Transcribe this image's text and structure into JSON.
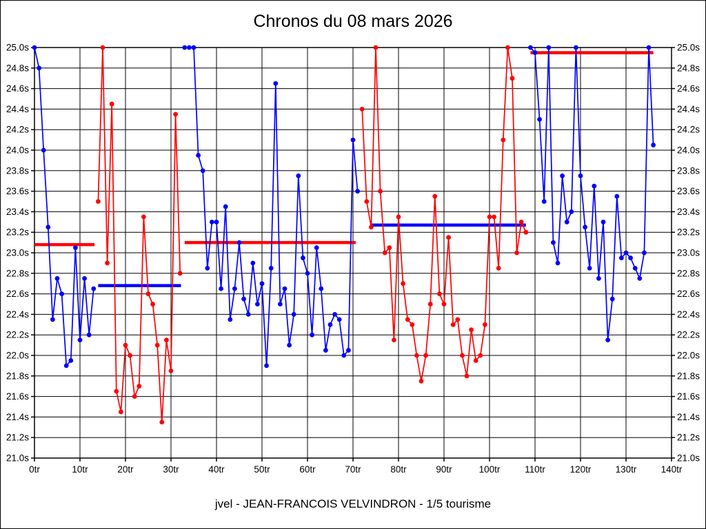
{
  "chart_data": {
    "type": "line",
    "title": "Chronos du 08 mars 2026",
    "caption": "jvel - JEAN-FRANCOIS VELVINDRON - 1/5 tourisme",
    "grid": true,
    "legend": "none",
    "x_axis": {
      "unit": "tr",
      "min": 0,
      "max": 140,
      "tick_step": 10,
      "tick_labels": [
        "0tr",
        "10tr",
        "20tr",
        "30tr",
        "40tr",
        "50tr",
        "60tr",
        "70tr",
        "80tr",
        "90tr",
        "100tr",
        "110tr",
        "120tr",
        "130tr",
        "140tr"
      ]
    },
    "y_axis": {
      "unit": "s",
      "min": 21.0,
      "max": 25.0,
      "tick_step": 0.2,
      "tick_labels_top_to_bottom": [
        "25.0s",
        "24.8s",
        "24.6s",
        "24.4s",
        "24.2s",
        "24.0s",
        "23.8s",
        "23.6s",
        "23.4s",
        "23.2s",
        "23.0s",
        "22.8s",
        "22.6s",
        "22.4s",
        "22.2s",
        "22.0s",
        "21.8s",
        "21.6s",
        "21.4s",
        "21.2s",
        "21.0s"
      ]
    },
    "colors": {
      "blue": "#0000ff",
      "red": "#ff0000",
      "grid": "#000000"
    },
    "series": [
      {
        "name": "stint-1-blue",
        "color": "#0000ff",
        "start_lap": 0,
        "values": [
          25.0,
          24.8,
          24.0,
          23.25,
          22.35,
          22.75,
          22.6,
          21.9,
          21.95,
          23.05,
          22.15,
          22.75,
          22.2,
          22.65
        ]
      },
      {
        "name": "stint-2-red",
        "color": "#ff0000",
        "start_lap": 14,
        "values": [
          23.5,
          25.0,
          22.9,
          24.45,
          21.65,
          21.45,
          22.1,
          22.0,
          21.6,
          21.7,
          23.35,
          22.6,
          22.5,
          22.1,
          21.35,
          22.15,
          21.85,
          24.35,
          22.8
        ]
      },
      {
        "name": "stint-3-blue",
        "color": "#0000ff",
        "start_lap": 33,
        "values": [
          25.0,
          25.0,
          25.0,
          23.95,
          23.8,
          22.85,
          23.3,
          23.3,
          22.65,
          23.45,
          22.35,
          22.65,
          23.1,
          22.55,
          22.4,
          22.9,
          22.5,
          22.7,
          21.9,
          22.85,
          24.65,
          22.5,
          22.65,
          22.1,
          22.4,
          23.75,
          22.95,
          22.8,
          22.2,
          23.05,
          22.65,
          22.05,
          22.3,
          22.4,
          22.35,
          22.0,
          22.05,
          24.1,
          23.6
        ]
      },
      {
        "name": "stint-4-red",
        "color": "#ff0000",
        "start_lap": 72,
        "values": [
          24.4,
          23.5,
          23.25,
          25.0,
          23.6,
          23.0,
          23.05,
          22.15,
          23.35,
          22.7,
          22.35,
          22.3,
          22.0,
          21.75,
          22.0,
          22.5,
          23.55,
          22.6,
          22.5,
          23.15,
          22.3,
          22.35,
          22.0,
          21.8,
          22.25,
          21.95,
          22.0,
          22.3,
          23.35,
          23.35,
          22.85,
          24.1,
          25.0,
          24.7,
          23.0,
          23.3,
          23.2
        ]
      },
      {
        "name": "stint-5-blue",
        "color": "#0000ff",
        "start_lap": 109,
        "values": [
          25.0,
          24.95,
          24.3,
          23.5,
          25.0,
          23.1,
          22.9,
          23.75,
          23.3,
          23.4,
          25.0,
          23.75,
          23.25,
          22.85,
          23.65,
          22.75,
          23.3,
          22.15,
          22.55,
          23.55,
          22.95,
          23.0,
          22.95,
          22.85,
          22.75,
          23.0,
          25.0,
          24.05
        ]
      }
    ],
    "reference_lines": [
      {
        "name": "avg-stint-1",
        "color": "#ff0000",
        "y": 23.08,
        "x_start": 0,
        "x_end": 13.2
      },
      {
        "name": "avg-stint-2",
        "color": "#0000ff",
        "y": 22.68,
        "x_start": 14,
        "x_end": 32.2
      },
      {
        "name": "avg-stint-3",
        "color": "#ff0000",
        "y": 23.1,
        "x_start": 33,
        "x_end": 70.6
      },
      {
        "name": "avg-stint-4",
        "color": "#0000ff",
        "y": 23.27,
        "x_start": 74,
        "x_end": 108
      },
      {
        "name": "avg-stint-5",
        "color": "#ff0000",
        "y": 24.95,
        "x_start": 109,
        "x_end": 136
      }
    ]
  }
}
